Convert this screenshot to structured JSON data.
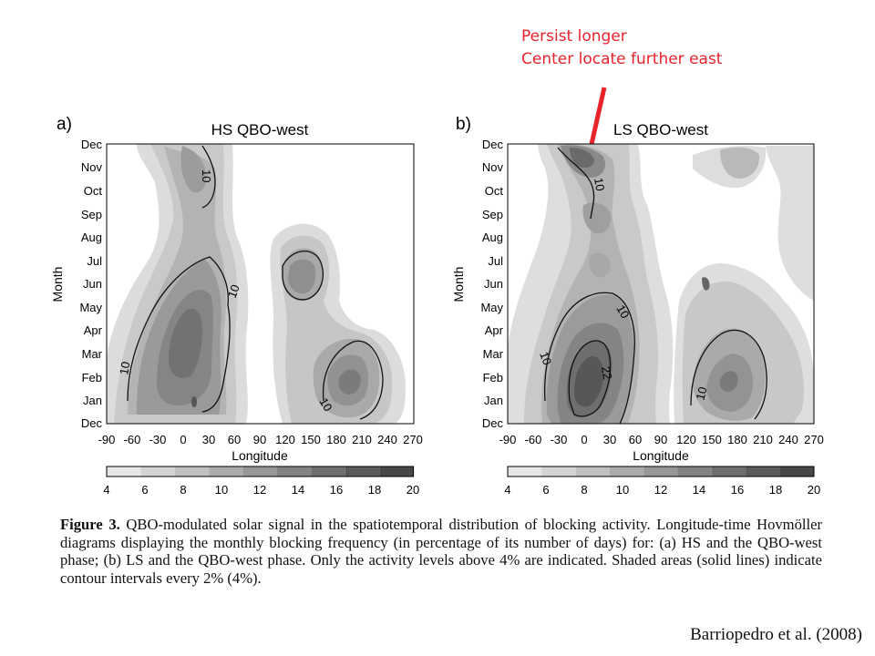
{
  "annotation": {
    "line1": "Persist longer",
    "line2": "Center locate further east",
    "color": "#e8232b"
  },
  "panels": [
    {
      "label": "a)",
      "title": "HS QBO-west",
      "contour_labels": [
        "10",
        "10",
        "10",
        "10"
      ]
    },
    {
      "label": "b)",
      "title": "LS QBO-west",
      "contour_labels": [
        "10",
        "10",
        "10",
        "22",
        "10"
      ]
    }
  ],
  "axes": {
    "ylabel": "Month",
    "xlabel": "Longitude",
    "months": [
      "Dec",
      "Nov",
      "Oct",
      "Sep",
      "Aug",
      "Jul",
      "Jun",
      "May",
      "Apr",
      "Mar",
      "Feb",
      "Jan",
      "Dec"
    ],
    "lon_ticks": [
      "-90",
      "-60",
      "-30",
      "0",
      "30",
      "60",
      "90",
      "120",
      "150",
      "180",
      "210",
      "240",
      "270"
    ]
  },
  "colorbar": {
    "labels": [
      "4",
      "6",
      "8",
      "10",
      "12",
      "14",
      "16",
      "18",
      "20"
    ],
    "colors": [
      "#e6e6e6",
      "#d4d4d4",
      "#c0c0c0",
      "#ababab",
      "#979797",
      "#838383",
      "#6e6e6e",
      "#5a5a5a",
      "#474747"
    ]
  },
  "caption": {
    "lead": "Figure 3.",
    "text": "QBO-modulated solar signal in the spatiotemporal distribution of blocking activity. Longitude-time Hovmöller diagrams displaying the monthly blocking frequency (in percentage of its number of days) for: (a) HS and the QBO-west phase; (b) LS and the QBO-west phase. Only the activity levels above 4% are indicated. Shaded areas (solid lines) indicate contour intervals every 2% (4%)."
  },
  "citation": "Barriopedro et al. (2008)"
}
